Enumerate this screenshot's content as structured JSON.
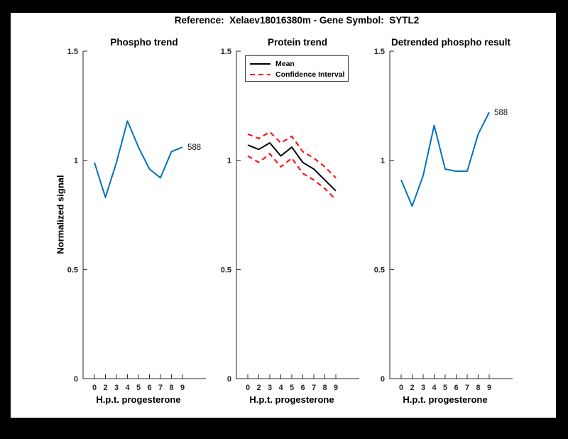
{
  "suptitle": "Reference:  Xelaev18016380m - Gene Symbol:  SYTL2",
  "colors": {
    "line_blue": "#0072BD",
    "line_red": "#FF0000",
    "line_black": "#000000",
    "axis": "#262626",
    "frame": "#000000",
    "background": "#FFFFFF"
  },
  "legend": {
    "items": [
      {
        "label": "Mean",
        "style": "solid",
        "color": "#000000"
      },
      {
        "label": "Confidence Interval",
        "style": "dashed",
        "color": "#FF0000"
      }
    ]
  },
  "chart_data": [
    {
      "type": "line",
      "title": "Phospho trend",
      "xlabel": "H.p.t. progesterone",
      "ylabel": "Normalized signal",
      "x_tick_labels": [
        "0",
        "2",
        "3",
        "4",
        "5",
        "6",
        "7",
        "8",
        "9"
      ],
      "ylim": [
        0,
        1.5
      ],
      "yticks": [
        0,
        0.5,
        1,
        1.5
      ],
      "grid": false,
      "end_label": "588",
      "series": [
        {
          "name": "Phospho signal",
          "color": "#0072BD",
          "style": "solid",
          "values": [
            0.99,
            0.83,
            0.99,
            1.18,
            1.06,
            0.96,
            0.92,
            1.04,
            1.06
          ]
        }
      ]
    },
    {
      "type": "line",
      "title": "Protein trend",
      "xlabel": "H.p.t. progesterone",
      "x_tick_labels": [
        "0",
        "2",
        "3",
        "4",
        "5",
        "6",
        "7",
        "8",
        "9"
      ],
      "ylim": [
        0,
        1.5
      ],
      "yticks": [
        0,
        0.5,
        1,
        1.5
      ],
      "grid": false,
      "legend_position": "top-left",
      "series": [
        {
          "name": "Mean",
          "color": "#000000",
          "style": "solid",
          "values": [
            1.07,
            1.05,
            1.08,
            1.02,
            1.06,
            0.99,
            0.96,
            0.91,
            0.86
          ]
        },
        {
          "name": "Confidence Interval upper",
          "color": "#FF0000",
          "style": "dashed",
          "values": [
            1.12,
            1.1,
            1.13,
            1.08,
            1.11,
            1.04,
            1.01,
            0.97,
            0.92
          ]
        },
        {
          "name": "Confidence Interval lower",
          "color": "#FF0000",
          "style": "dashed",
          "values": [
            1.02,
            0.99,
            1.03,
            0.97,
            1.01,
            0.94,
            0.91,
            0.87,
            0.82
          ]
        }
      ]
    },
    {
      "type": "line",
      "title": "Detrended phospho result",
      "xlabel": "H.p.t. progesterone",
      "x_tick_labels": [
        "0",
        "2",
        "3",
        "4",
        "5",
        "6",
        "7",
        "8",
        "9"
      ],
      "ylim": [
        0,
        1.5
      ],
      "yticks": [
        0,
        0.5,
        1,
        1.5
      ],
      "grid": false,
      "end_label": "588",
      "series": [
        {
          "name": "Detrended phospho signal",
          "color": "#0072BD",
          "style": "solid",
          "values": [
            0.91,
            0.79,
            0.93,
            1.16,
            0.96,
            0.95,
            0.95,
            1.12,
            1.22
          ]
        }
      ]
    }
  ]
}
